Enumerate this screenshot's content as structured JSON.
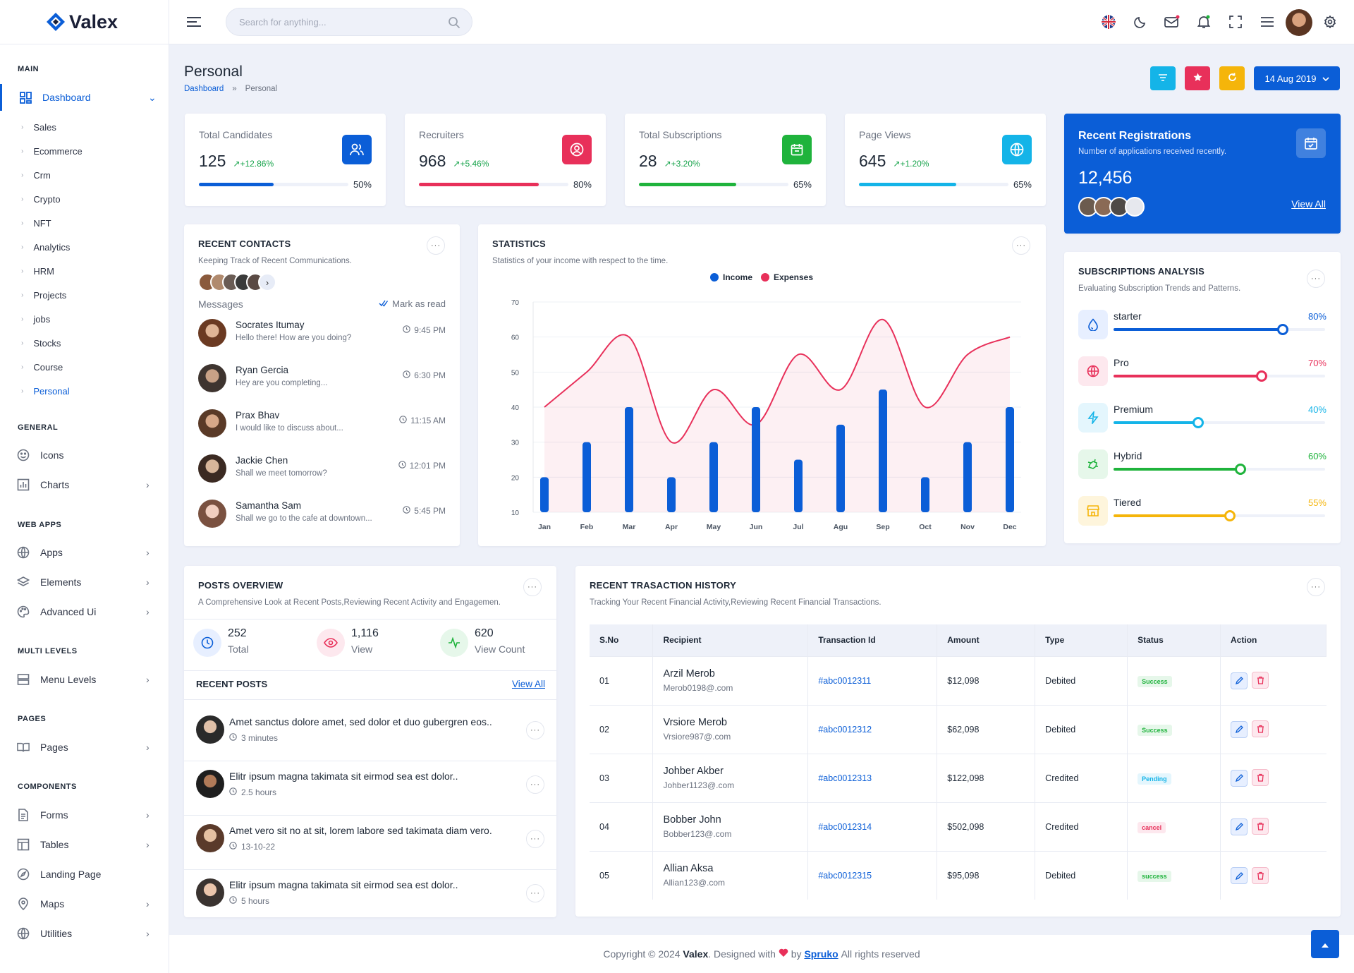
{
  "app": {
    "name": "Valex"
  },
  "sidebar": {
    "categories": [
      "MAIN",
      "GENERAL",
      "WEB APPS",
      "MULTI LEVELS",
      "PAGES",
      "COMPONENTS"
    ],
    "dashboard": "Dashboard",
    "sub_items": [
      "Sales",
      "Ecommerce",
      "Crm",
      "Crypto",
      "NFT",
      "Analytics",
      "HRM",
      "Projects",
      "jobs",
      "Stocks",
      "Course",
      "Personal"
    ],
    "general": [
      "Icons",
      "Charts"
    ],
    "webapps": [
      "Apps",
      "Elements",
      "Advanced Ui"
    ],
    "multilevels": [
      "Menu Levels"
    ],
    "pages": [
      "Pages"
    ],
    "components": [
      "Forms",
      "Tables",
      "Landing Page",
      "Maps",
      "Utilities"
    ]
  },
  "header": {
    "search_placeholder": "Search for anything..."
  },
  "page": {
    "title": "Personal",
    "breadcrumb_home": "Dashboard",
    "breadcrumb_sep": "»",
    "breadcrumb_current": "Personal",
    "date_button": "14 Aug 2019"
  },
  "stats": [
    {
      "title": "Total Candidates",
      "value": "125",
      "change": "+12.86%",
      "pct": "50%",
      "fill": 0.5,
      "color": "#0b5ed7"
    },
    {
      "title": "Recruiters",
      "value": "968",
      "change": "+5.46%",
      "pct": "80%",
      "fill": 0.8,
      "color": "#e8305a"
    },
    {
      "title": "Total Subscriptions",
      "value": "28",
      "change": "+3.20%",
      "pct": "65%",
      "fill": 0.65,
      "color": "#1fb33c"
    },
    {
      "title": "Page Views",
      "value": "645",
      "change": "+1.20%",
      "pct": "65%",
      "fill": 0.65,
      "color": "#14b4e8"
    }
  ],
  "registrations": {
    "title": "Recent Registrations",
    "subtitle": "Number of applications received recently.",
    "value": "12,456",
    "link": "View All"
  },
  "contacts": {
    "title": "RECENT CONTACTS",
    "subtitle": "Keeping Track of Recent Communications.",
    "messages_label": "Messages",
    "mark_read": "Mark as read",
    "items": [
      {
        "name": "Socrates Itumay",
        "text": "Hello there! How are you doing?",
        "time": "9:45 PM"
      },
      {
        "name": "Ryan Gercia",
        "text": "Hey are you completing...",
        "time": "6:30 PM"
      },
      {
        "name": "Prax Bhav",
        "text": "I would like to discuss about...",
        "time": "11:15 AM"
      },
      {
        "name": "Jackie Chen",
        "text": "Shall we meet tomorrow?",
        "time": "12:01 PM"
      },
      {
        "name": "Samantha Sam",
        "text": "Shall we go to the cafe at downtown...",
        "time": "5:45 PM"
      }
    ]
  },
  "statistics": {
    "title": "STATISTICS",
    "subtitle": "Statistics of your income with respect to the time."
  },
  "chart_data": {
    "type": "bar",
    "categories": [
      "Jan",
      "Feb",
      "Mar",
      "Apr",
      "May",
      "Jun",
      "Jul",
      "Agu",
      "Sep",
      "Oct",
      "Nov",
      "Dec"
    ],
    "series": [
      {
        "name": "Income",
        "type": "bar",
        "values": [
          20,
          30,
          40,
          20,
          30,
          40,
          25,
          35,
          45,
          20,
          30,
          40
        ],
        "color": "#0b5ed7"
      },
      {
        "name": "Expenses",
        "type": "area",
        "values": [
          40,
          50,
          60,
          30,
          45,
          35,
          55,
          45,
          65,
          40,
          55,
          60
        ],
        "color": "#e8305a"
      }
    ],
    "yticks": [
      10,
      20,
      30,
      40,
      50,
      60,
      70
    ],
    "ylim": [
      10,
      70
    ],
    "legend": "top"
  },
  "subscriptions": {
    "title": "SUBSCRIPTIONS ANALYSIS",
    "subtitle": "Evaluating Subscription Trends and Patterns.",
    "items": [
      {
        "name": "starter",
        "pct": "80%",
        "fill": 0.8,
        "color": "#0b5ed7",
        "bg": "#e7efff"
      },
      {
        "name": "Pro",
        "pct": "70%",
        "fill": 0.7,
        "color": "#e8305a",
        "bg": "#fde8ee"
      },
      {
        "name": "Premium",
        "pct": "40%",
        "fill": 0.4,
        "color": "#14b4e8",
        "bg": "#e4f6fd"
      },
      {
        "name": "Hybrid",
        "pct": "60%",
        "fill": 0.6,
        "color": "#1fb33c",
        "bg": "#e6f7ea"
      },
      {
        "name": "Tiered",
        "pct": "55%",
        "fill": 0.55,
        "color": "#f5b50a",
        "bg": "#fef5dc"
      }
    ]
  },
  "posts": {
    "title": "POSTS OVERVIEW",
    "subtitle": "A Comprehensive Look at Recent Posts,Reviewing Recent Activity and Engagemen.",
    "metrics": [
      {
        "value": "252",
        "label": "Total"
      },
      {
        "value": "1,116",
        "label": "View"
      },
      {
        "value": "620",
        "label": "View Count"
      }
    ],
    "recent_title": "RECENT POSTS",
    "view_all": "View All",
    "items": [
      {
        "title": "Amet sanctus dolore amet, sed dolor et duo gubergren eos..",
        "time": "3 minutes"
      },
      {
        "title": "Elitr ipsum magna takimata sit eirmod sea est dolor..",
        "time": "2.5 hours"
      },
      {
        "title": "Amet vero sit no at sit, lorem labore sed takimata diam vero.",
        "time": "13-10-22"
      },
      {
        "title": "Elitr ipsum magna takimata sit eirmod sea est dolor..",
        "time": "5 hours"
      }
    ]
  },
  "transactions": {
    "title": "RECENT TRASACTION HISTORY",
    "subtitle": "Tracking Your Recent Financial Activity,Reviewing Recent Financial Transactions.",
    "headers": [
      "S.No",
      "Recipient",
      "Transaction Id",
      "Amount",
      "Type",
      "Status",
      "Action"
    ],
    "rows": [
      {
        "sno": "01",
        "name": "Arzil Merob",
        "email": "Merob0198@.com",
        "id": "#abc0012311",
        "amount": "$12,098",
        "type": "Debited",
        "status": "Success",
        "status_kind": "success"
      },
      {
        "sno": "02",
        "name": "Vrsiore Merob",
        "email": "Vrsiore987@.com",
        "id": "#abc0012312",
        "amount": "$62,098",
        "type": "Debited",
        "status": "Success",
        "status_kind": "success"
      },
      {
        "sno": "03",
        "name": "Johber Akber",
        "email": "Johber1123@.com",
        "id": "#abc0012313",
        "amount": "$122,098",
        "type": "Credited",
        "status": "Pending",
        "status_kind": "pending"
      },
      {
        "sno": "04",
        "name": "Bobber John",
        "email": "Bobber123@.com",
        "id": "#abc0012314",
        "amount": "$502,098",
        "type": "Credited",
        "status": "cancel",
        "status_kind": "cancel"
      },
      {
        "sno": "05",
        "name": "Allian Aksa",
        "email": "Allian123@.com",
        "id": "#abc0012315",
        "amount": "$95,098",
        "type": "Debited",
        "status": "success",
        "status_kind": "success"
      }
    ]
  },
  "footer": {
    "prefix": "Copyright © 2024",
    "brand": "Valex",
    "mid": ". Designed with",
    "by": "by",
    "company": "Spruko",
    "suffix": "All rights reserved"
  }
}
